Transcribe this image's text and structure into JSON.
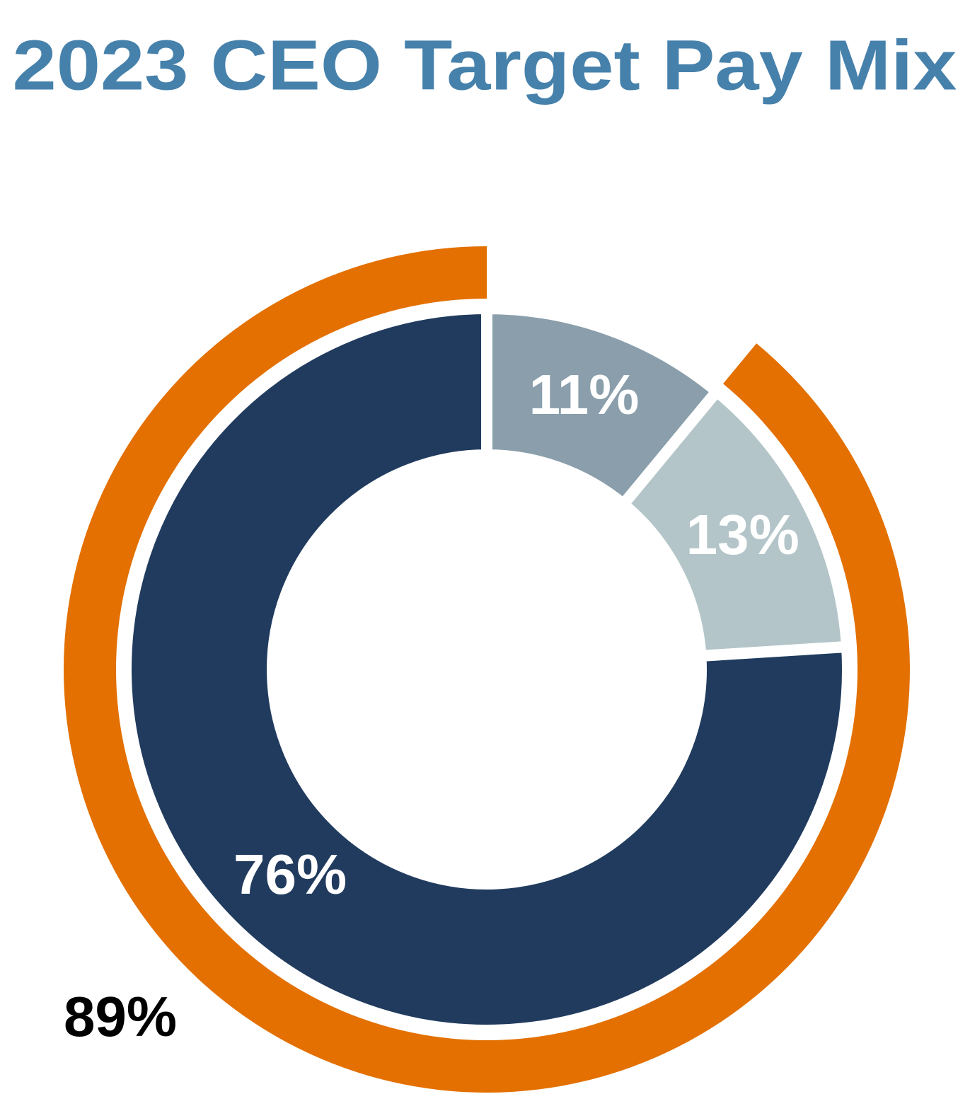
{
  "chart_data": {
    "type": "donut",
    "title": "2023 CEO Target Pay Mix",
    "series": [
      {
        "values": [
          11,
          13,
          76
        ],
        "value_labels": [
          "11%",
          "13%",
          "76%"
        ],
        "colors": [
          "#8a9eab",
          "#b3c5c8",
          "#203b5e"
        ]
      },
      {
        "values": [
          89
        ],
        "value_labels": [
          "89%"
        ],
        "colors": [
          "#e37000"
        ]
      }
    ]
  }
}
